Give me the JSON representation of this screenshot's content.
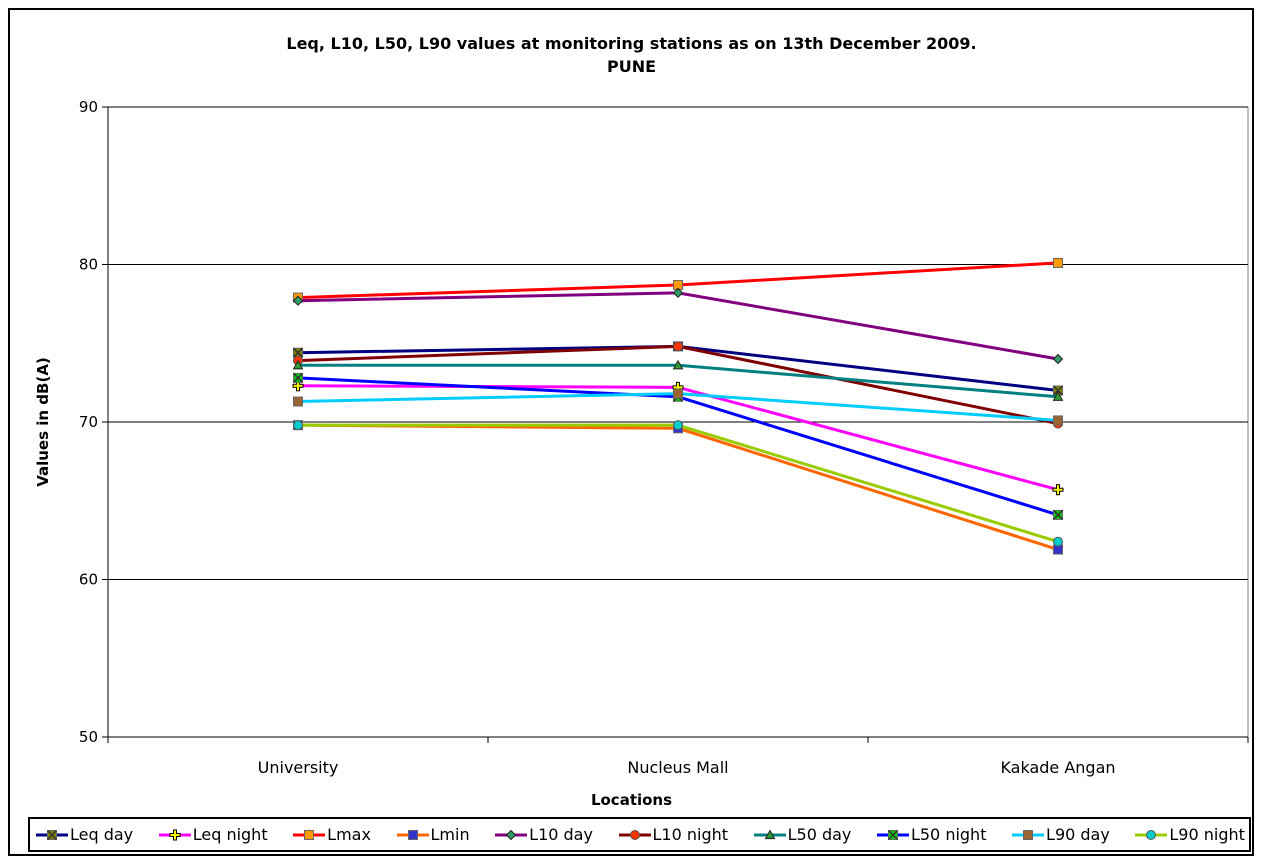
{
  "chart_data": {
    "type": "line",
    "title": "Leq, L10, L50, L90 values at monitoring stations as on 13th December 2009.",
    "subtitle": "PUNE",
    "xlabel": "Locations",
    "ylabel": "Values in dB(A)",
    "ylim": [
      50,
      90
    ],
    "yticks": [
      50,
      60,
      70,
      80,
      90
    ],
    "grid": true,
    "legend": "bottom",
    "categories": [
      "University",
      "Nucleus Mall",
      "Kakade Angan"
    ],
    "series": [
      {
        "name": "Leq day",
        "values": [
          74.4,
          74.8,
          72.0
        ],
        "color": "#000080",
        "marker": "xsquare",
        "marker_color": "#808000"
      },
      {
        "name": "Leq night",
        "values": [
          72.3,
          72.2,
          65.7
        ],
        "color": "#FF00FF",
        "marker": "plus",
        "marker_color": "#FFFF00"
      },
      {
        "name": "Lmax",
        "values": [
          77.9,
          78.7,
          80.1
        ],
        "color": "#FF0000",
        "marker": "square",
        "marker_color": "#FF9900"
      },
      {
        "name": "Lmin",
        "values": [
          69.8,
          69.6,
          61.9
        ],
        "color": "#FF6600",
        "marker": "square",
        "marker_color": "#3333CC"
      },
      {
        "name": "L10 day",
        "values": [
          77.7,
          78.2,
          74.0
        ],
        "color": "#800080",
        "marker": "diamond",
        "marker_color": "#339966"
      },
      {
        "name": "L10 night",
        "values": [
          73.9,
          74.8,
          69.9
        ],
        "color": "#800000",
        "marker": "circle",
        "marker_color": "#FF3300"
      },
      {
        "name": "L50 day",
        "values": [
          73.6,
          73.6,
          71.6
        ],
        "color": "#008080",
        "marker": "triangle",
        "marker_color": "#339933"
      },
      {
        "name": "L50 night",
        "values": [
          72.8,
          71.6,
          64.1
        ],
        "color": "#0000FF",
        "marker": "xsquare",
        "marker_color": "#00CC00"
      },
      {
        "name": "L90 day",
        "values": [
          71.3,
          71.8,
          70.1
        ],
        "color": "#00CCFF",
        "marker": "square",
        "marker_color": "#996633"
      },
      {
        "name": "L90 night",
        "values": [
          69.8,
          69.8,
          62.4
        ],
        "color": "#99CC00",
        "marker": "circle",
        "marker_color": "#00CCCC"
      }
    ]
  }
}
